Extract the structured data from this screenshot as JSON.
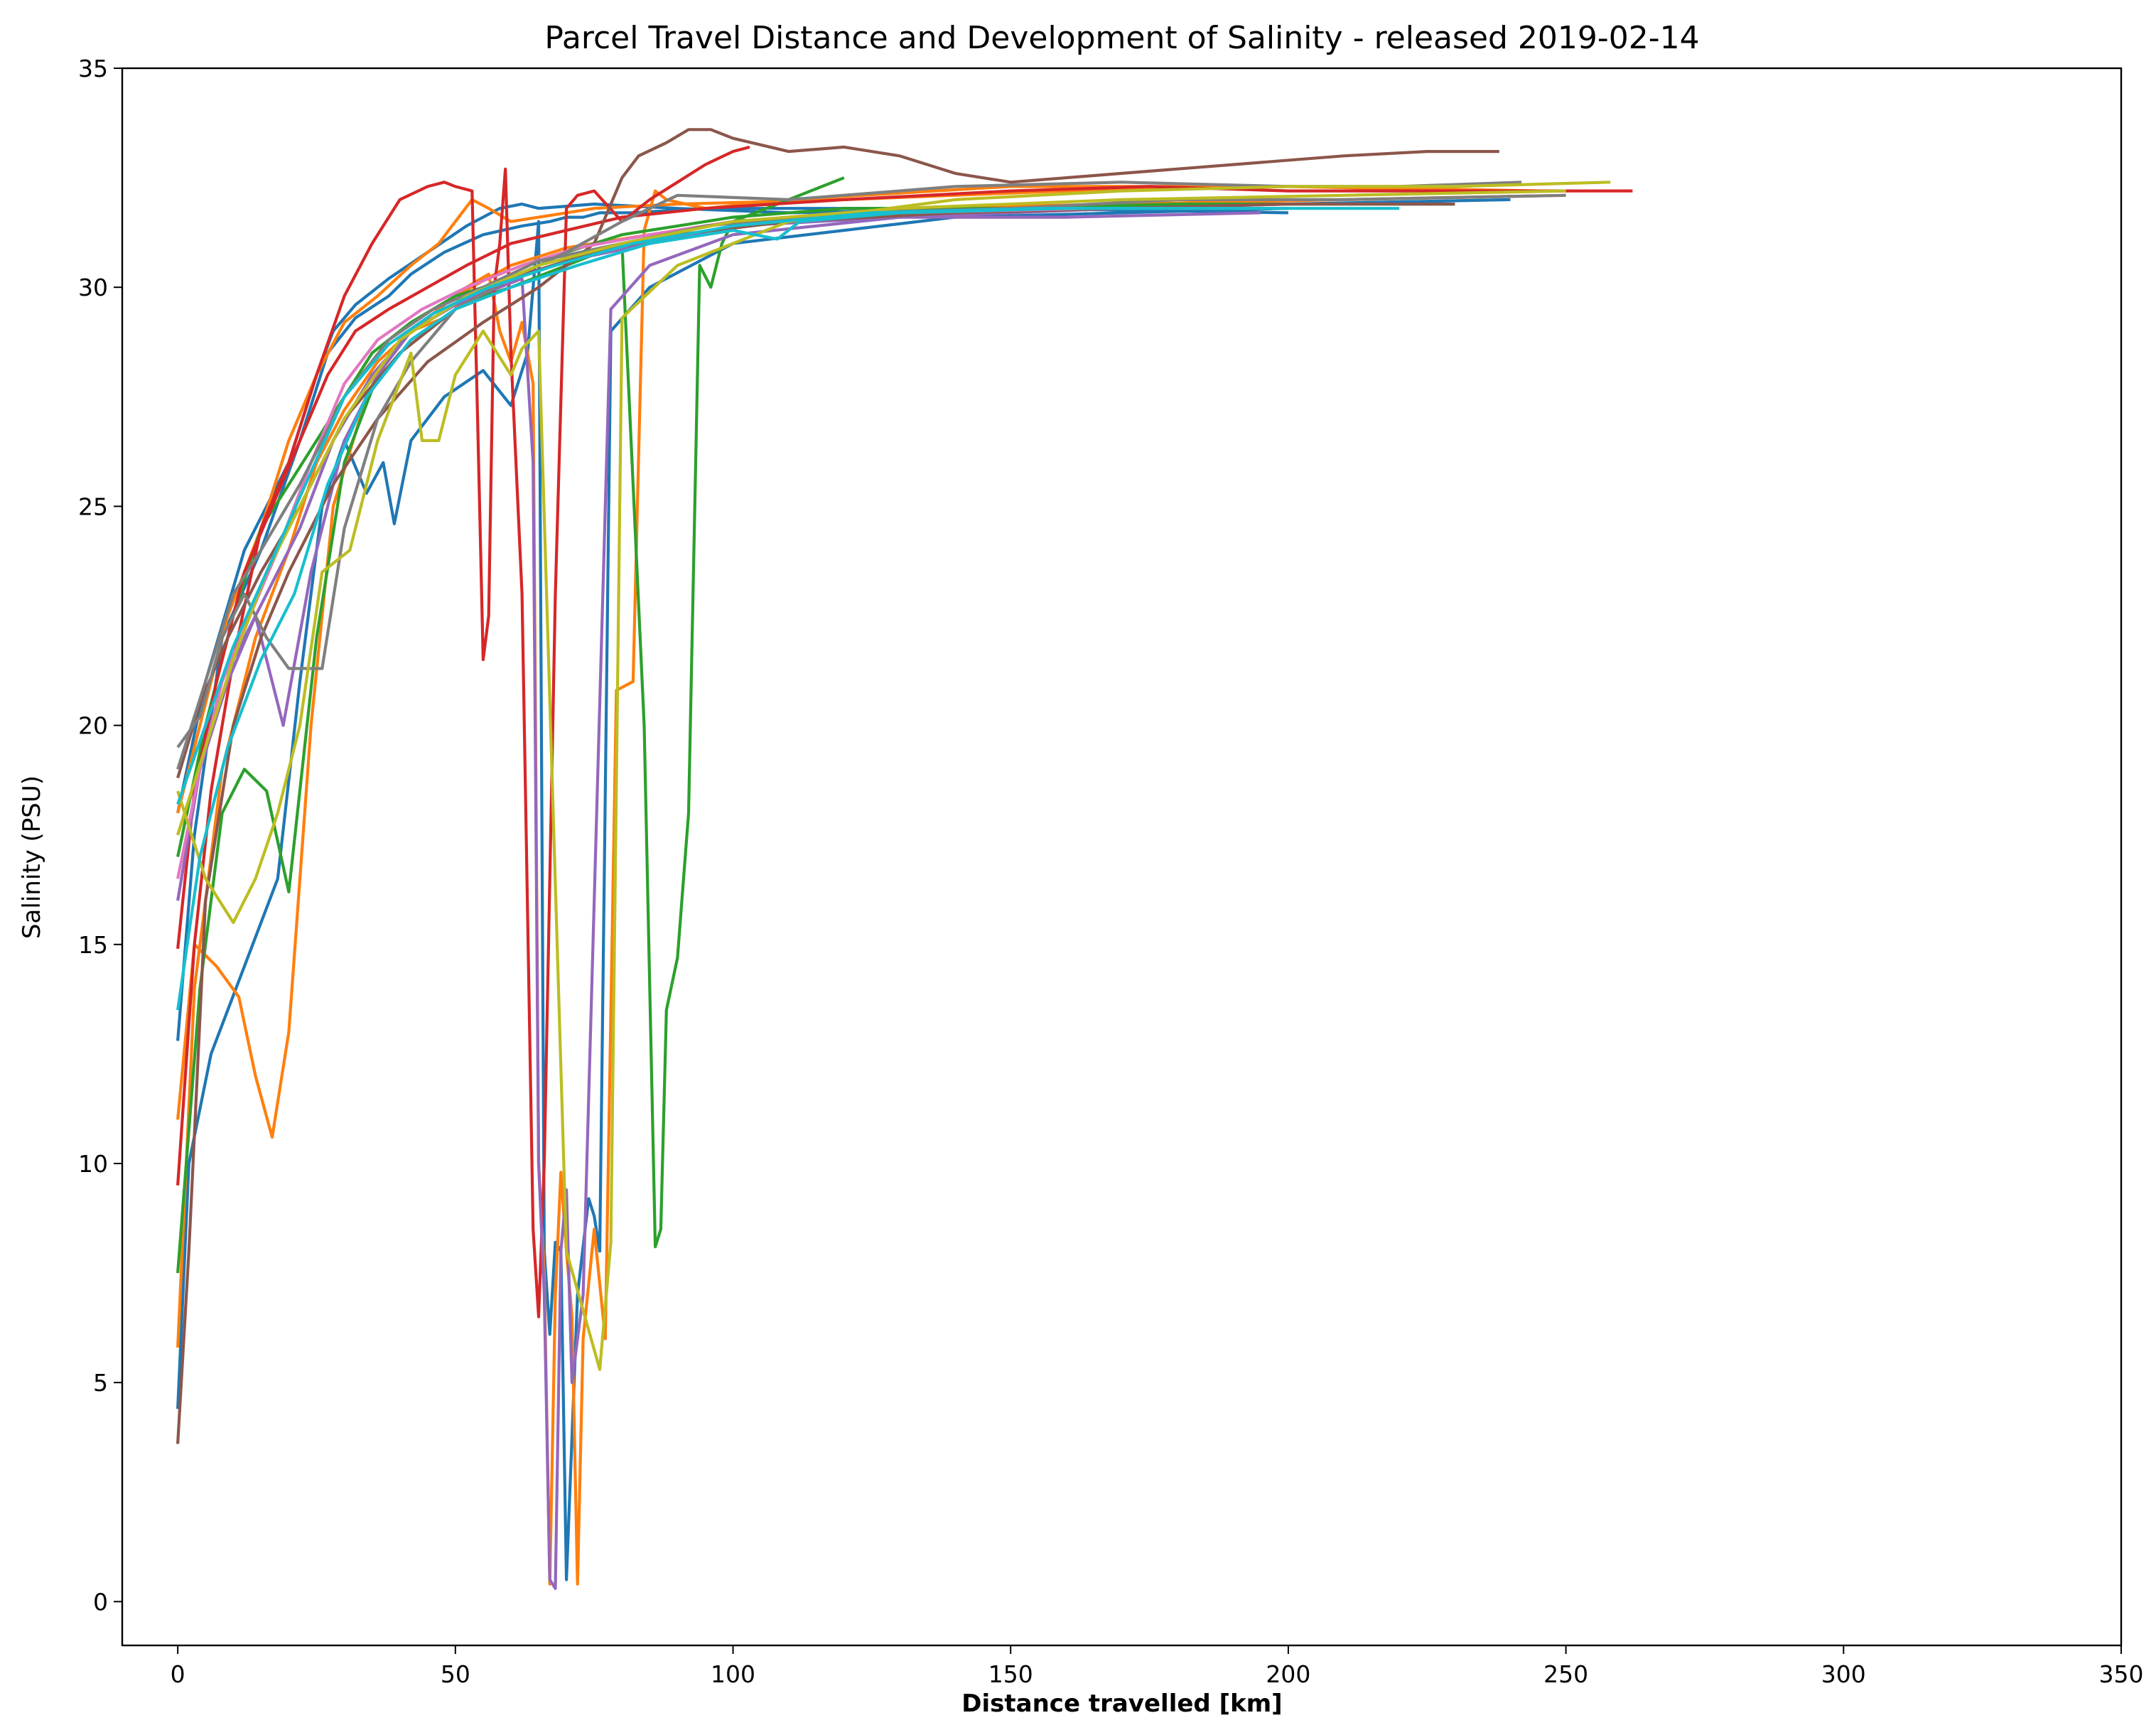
{
  "chart_data": {
    "type": "line",
    "title": "Parcel Travel Distance and Development of Salinity - released 2019-02-14",
    "xlabel": "Distance travelled [km]",
    "ylabel": "Salinity (PSU)",
    "xlim": [
      -10,
      350
    ],
    "ylim": [
      -1,
      35
    ],
    "xticks": [
      "0",
      "50",
      "100",
      "150",
      "200",
      "250",
      "300",
      "350"
    ],
    "yticks": [
      "0",
      "5",
      "10",
      "15",
      "20",
      "25",
      "30",
      "35"
    ],
    "grid": false,
    "legend": "none",
    "palette": [
      "#1f77b4",
      "#ff7f0e",
      "#2ca02c",
      "#d62728",
      "#9467bd",
      "#8c564b",
      "#e377c2",
      "#7f7f7f",
      "#bcbd22",
      "#17becf"
    ],
    "series": [
      {
        "color": "#1f77b4",
        "x": [
          0,
          3,
          8,
          15,
          22,
          27,
          32,
          38,
          42,
          48,
          55,
          62,
          67,
          70,
          73,
          76,
          82,
          95,
          120,
          160,
          200,
          240
        ],
        "y": [
          12.8,
          17.5,
          22.0,
          24.0,
          26.5,
          28.5,
          29.3,
          29.8,
          30.3,
          30.8,
          31.2,
          31.4,
          31.5,
          31.6,
          31.6,
          31.7,
          31.7,
          31.8,
          31.8,
          31.8,
          31.9,
          32.0
        ]
      },
      {
        "color": "#1f77b4",
        "x": [
          0,
          2,
          6,
          12,
          18,
          22,
          26,
          30,
          34,
          37,
          39,
          42,
          48,
          55,
          60,
          63,
          65,
          66,
          67,
          68,
          69,
          70,
          72,
          74,
          75,
          76,
          78,
          85,
          100,
          140,
          200
        ],
        "y": [
          4.4,
          10.0,
          12.5,
          14.5,
          16.5,
          21.0,
          25.0,
          26.5,
          25.3,
          26.0,
          24.6,
          26.5,
          27.5,
          28.1,
          27.3,
          28.5,
          31.5,
          8.0,
          6.1,
          8.2,
          8.0,
          0.5,
          7.0,
          9.2,
          8.8,
          8.0,
          29.0,
          30.0,
          31.0,
          31.6,
          31.8
        ]
      },
      {
        "color": "#1f77b4",
        "x": [
          0,
          5,
          12,
          20,
          25,
          28,
          32,
          38,
          45,
          52,
          58,
          62,
          65,
          75,
          90,
          110,
          150,
          200
        ],
        "y": [
          18.0,
          21.0,
          24.0,
          26.0,
          28.0,
          29.0,
          29.6,
          30.2,
          30.8,
          31.4,
          31.8,
          31.9,
          31.8,
          31.9,
          31.8,
          31.7,
          31.8,
          31.7
        ]
      },
      {
        "color": "#ff7f0e",
        "x": [
          0,
          3,
          7,
          11,
          14,
          17,
          20,
          24,
          28,
          34,
          40,
          50,
          60,
          70,
          85,
          100,
          130,
          170,
          210,
          250
        ],
        "y": [
          11.0,
          15.0,
          14.5,
          13.8,
          12.0,
          10.6,
          13.0,
          20.0,
          25.0,
          27.5,
          28.8,
          29.8,
          30.5,
          30.9,
          31.2,
          31.5,
          31.8,
          31.9,
          32.0,
          32.1
        ]
      },
      {
        "color": "#ff7f0e",
        "x": [
          0,
          3,
          8,
          14,
          20,
          25,
          30,
          36,
          42,
          48,
          50,
          52,
          56,
          58,
          60,
          62,
          64,
          65,
          66,
          67,
          68,
          69,
          70,
          71,
          72,
          73,
          75,
          77,
          79,
          82,
          84,
          86,
          88,
          95,
          110,
          150,
          200,
          240
        ],
        "y": [
          5.8,
          14.0,
          19.0,
          22.0,
          24.0,
          26.0,
          27.2,
          28.3,
          29.0,
          29.3,
          29.5,
          30.0,
          30.3,
          29.0,
          28.3,
          29.2,
          27.8,
          10.0,
          7.5,
          0.4,
          7.0,
          9.8,
          8.0,
          6.5,
          0.4,
          6.0,
          8.5,
          6.0,
          20.8,
          21.0,
          31.3,
          32.2,
          32.0,
          31.8,
          32.0,
          32.3,
          32.3,
          32.2
        ]
      },
      {
        "color": "#ff7f0e",
        "x": [
          0,
          4,
          9,
          15,
          20,
          25,
          30,
          36,
          42,
          47,
          50,
          53,
          56,
          60,
          65,
          75,
          90,
          120,
          160,
          200,
          245
        ],
        "y": [
          18.0,
          20.0,
          22.5,
          24.5,
          26.5,
          28.0,
          29.2,
          29.8,
          30.5,
          31.0,
          31.5,
          32.0,
          31.8,
          31.5,
          31.6,
          31.8,
          31.9,
          32.0,
          32.2,
          32.3,
          32.2
        ]
      },
      {
        "color": "#2ca02c",
        "x": [
          0,
          4,
          8,
          12,
          16,
          20,
          25,
          30,
          36,
          42,
          50,
          60,
          70,
          80,
          84,
          86,
          87,
          88,
          90,
          92,
          94,
          96,
          98,
          100,
          110,
          120
        ],
        "y": [
          7.5,
          14.0,
          18.0,
          19.0,
          18.5,
          16.2,
          22.0,
          26.0,
          28.0,
          29.0,
          29.6,
          30.0,
          30.5,
          31.0,
          20.0,
          8.1,
          8.5,
          13.5,
          14.7,
          18.0,
          30.5,
          30.0,
          31.0,
          31.5,
          32.0,
          32.5
        ]
      },
      {
        "color": "#2ca02c",
        "x": [
          0,
          5,
          10,
          15,
          20,
          25,
          30,
          35,
          42,
          50,
          60,
          70,
          80,
          90,
          100,
          120,
          150,
          180,
          210,
          230
        ],
        "y": [
          17.0,
          20.0,
          22.5,
          24.5,
          25.5,
          26.5,
          27.5,
          28.5,
          29.2,
          29.8,
          30.2,
          30.8,
          31.2,
          31.4,
          31.6,
          31.8,
          31.8,
          31.9,
          31.9,
          31.9
        ]
      },
      {
        "color": "#d62728",
        "x": [
          0,
          3,
          6,
          10,
          15,
          20,
          25,
          30,
          35,
          40,
          45,
          48,
          50,
          53,
          54,
          55,
          56,
          57,
          58,
          59,
          60,
          62,
          64,
          65,
          66,
          68,
          70,
          72,
          75,
          80,
          85,
          90,
          95,
          100,
          103
        ],
        "y": [
          9.5,
          15.0,
          18.5,
          21.5,
          24.5,
          26.0,
          28.0,
          29.8,
          31.0,
          32.0,
          32.3,
          32.4,
          32.3,
          32.2,
          27.0,
          21.5,
          22.5,
          30.0,
          31.0,
          32.7,
          28.5,
          23.0,
          8.5,
          6.5,
          10.0,
          23.0,
          31.8,
          32.1,
          32.2,
          31.5,
          32.0,
          32.4,
          32.8,
          33.1,
          33.2
        ]
      },
      {
        "color": "#d62728",
        "x": [
          0,
          3,
          7,
          12,
          17,
          22,
          27,
          32,
          38,
          45,
          52,
          60,
          70,
          80,
          95,
          120,
          150,
          175,
          200,
          230,
          262
        ],
        "y": [
          14.9,
          18.5,
          21.0,
          23.5,
          25.0,
          26.5,
          28.0,
          29.0,
          29.5,
          30.0,
          30.5,
          31.0,
          31.3,
          31.6,
          31.8,
          32.0,
          32.2,
          32.3,
          32.2,
          32.2,
          32.2
        ]
      },
      {
        "color": "#9467bd",
        "x": [
          0,
          4,
          9,
          14,
          19,
          24,
          30,
          36,
          42,
          50,
          58,
          62,
          64,
          65,
          66,
          67,
          68,
          69,
          70,
          71,
          73,
          78,
          85,
          100,
          130,
          170,
          200
        ],
        "y": [
          16.0,
          19.0,
          21.0,
          22.5,
          20.0,
          23.5,
          26.5,
          28.0,
          29.0,
          29.6,
          30.0,
          30.2,
          26.0,
          10.0,
          7.0,
          0.5,
          0.3,
          8.0,
          9.4,
          5.0,
          7.0,
          29.5,
          30.5,
          31.2,
          31.6,
          31.8,
          31.9
        ]
      },
      {
        "color": "#9467bd",
        "x": [
          0,
          5,
          10,
          16,
          22,
          28,
          35,
          42,
          50,
          60,
          70,
          85,
          100,
          130,
          160,
          195
        ],
        "y": [
          17.5,
          19.5,
          21.5,
          23.0,
          24.5,
          26.5,
          28.0,
          29.0,
          29.6,
          30.2,
          30.6,
          31.0,
          31.4,
          31.6,
          31.6,
          31.7
        ]
      },
      {
        "color": "#8c564b",
        "x": [
          0,
          2,
          5,
          10,
          15,
          20,
          28,
          36,
          45,
          55,
          65,
          75,
          80,
          83,
          88,
          92,
          96,
          100,
          110,
          120,
          130,
          140,
          150,
          170,
          190,
          210,
          225,
          238
        ],
        "y": [
          3.6,
          8.0,
          16.0,
          20.0,
          22.0,
          23.5,
          25.5,
          27.0,
          28.3,
          29.2,
          30.0,
          31.0,
          32.5,
          33.0,
          33.3,
          33.6,
          33.6,
          33.4,
          33.1,
          33.2,
          33.0,
          32.6,
          32.4,
          32.6,
          32.8,
          33.0,
          33.1,
          33.1
        ]
      },
      {
        "color": "#8c564b",
        "x": [
          0,
          4,
          9,
          15,
          22,
          30,
          40,
          50,
          60,
          75,
          90,
          110,
          140,
          170,
          200,
          230
        ],
        "y": [
          18.8,
          20.5,
          22.0,
          23.5,
          25.0,
          27.0,
          28.5,
          29.5,
          30.2,
          30.8,
          31.2,
          31.5,
          31.7,
          31.8,
          31.9,
          31.9
        ]
      },
      {
        "color": "#e377c2",
        "x": [
          0,
          4,
          8,
          13,
          18,
          24,
          30,
          36,
          44,
          52,
          62,
          72,
          85,
          100,
          130,
          165,
          200
        ],
        "y": [
          16.5,
          19.0,
          21.0,
          22.5,
          24.0,
          26.0,
          27.8,
          28.8,
          29.5,
          30.0,
          30.5,
          30.9,
          31.2,
          31.5,
          31.7,
          31.8,
          31.8
        ]
      },
      {
        "color": "#7f7f7f",
        "x": [
          0,
          4,
          8,
          12,
          16,
          20,
          26,
          30,
          36,
          42,
          50,
          60,
          70,
          80,
          90,
          110,
          140,
          170,
          200,
          220,
          242
        ],
        "y": [
          19.5,
          20.2,
          22.0,
          23.0,
          22.0,
          21.3,
          21.3,
          24.5,
          27.0,
          28.3,
          29.5,
          30.2,
          30.8,
          31.5,
          32.1,
          32.0,
          32.3,
          32.4,
          32.3,
          32.3,
          32.4
        ]
      },
      {
        "color": "#7f7f7f",
        "x": [
          0,
          5,
          10,
          15,
          22,
          30,
          38,
          46,
          55,
          65,
          80,
          95,
          120,
          150,
          180,
          210,
          250
        ],
        "y": [
          19.0,
          21.0,
          23.0,
          24.0,
          25.5,
          27.5,
          28.8,
          29.5,
          30.0,
          30.6,
          31.0,
          31.4,
          31.7,
          31.8,
          32.0,
          32.0,
          32.1
        ]
      },
      {
        "color": "#bcbd22",
        "x": [
          0,
          5,
          10,
          14,
          18,
          22,
          26,
          31,
          36,
          42,
          44,
          47,
          50,
          55,
          60,
          62,
          65,
          70,
          76,
          78,
          80,
          90,
          110,
          140,
          170,
          200,
          230,
          258
        ],
        "y": [
          18.5,
          16.5,
          15.5,
          16.5,
          18.0,
          20.0,
          23.5,
          24.0,
          26.5,
          28.5,
          26.5,
          26.5,
          28.0,
          29.0,
          28.0,
          28.6,
          29.0,
          8.0,
          5.3,
          8.2,
          29.3,
          30.5,
          31.5,
          32.0,
          32.2,
          32.3,
          32.3,
          32.4
        ]
      },
      {
        "color": "#bcbd22",
        "x": [
          0,
          5,
          10,
          16,
          22,
          30,
          40,
          52,
          65,
          80,
          100,
          130,
          170,
          210,
          250
        ],
        "y": [
          17.5,
          19.5,
          21.5,
          23.5,
          25.0,
          27.0,
          28.8,
          29.8,
          30.5,
          31.0,
          31.5,
          31.8,
          32.0,
          32.1,
          32.2
        ]
      },
      {
        "color": "#17becf",
        "x": [
          0,
          4,
          9,
          15,
          21,
          27,
          34,
          42,
          50,
          60,
          72,
          85,
          100,
          108,
          112,
          130,
          160,
          200
        ],
        "y": [
          13.5,
          17.0,
          19.5,
          21.5,
          23.0,
          25.5,
          27.5,
          28.8,
          29.5,
          30.0,
          30.5,
          31.0,
          31.3,
          31.1,
          31.5,
          31.7,
          31.8,
          31.8
        ]
      },
      {
        "color": "#17becf",
        "x": [
          0,
          5,
          10,
          16,
          23,
          30,
          38,
          46,
          56,
          68,
          82,
          100,
          125,
          155,
          185,
          220
        ],
        "y": [
          18.2,
          20.0,
          21.8,
          23.5,
          25.5,
          27.5,
          28.7,
          29.4,
          30.0,
          30.5,
          31.0,
          31.4,
          31.7,
          31.8,
          31.8,
          31.8
        ]
      }
    ]
  }
}
